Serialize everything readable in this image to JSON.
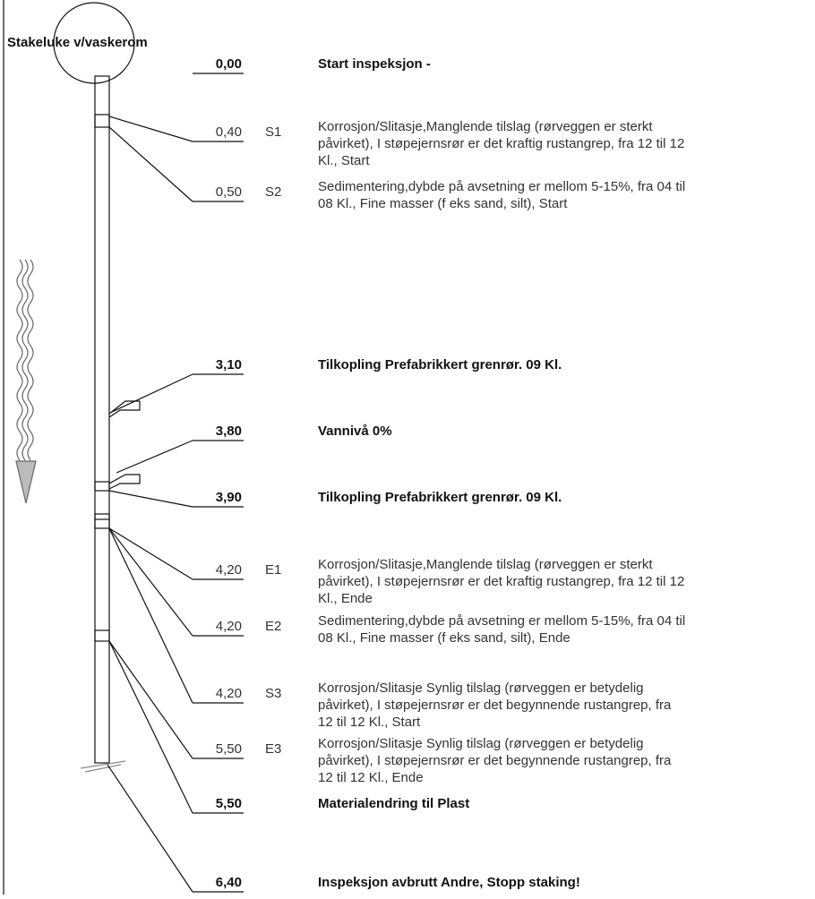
{
  "title": "Stakeluke v/vaskerom",
  "entries": [
    {
      "distance": "0,00",
      "lines": [
        "Start inspeksjon -"
      ]
    },
    {
      "distance": "0,40",
      "code": "S1",
      "lines": [
        "Korrosjon/Slitasje,Manglende tilslag (rørveggen er sterkt",
        "påvirket), I støpejernsrør er det kraftig rustangrep, fra 12 til 12",
        "Kl., Start"
      ]
    },
    {
      "distance": "0,50",
      "code": "S2",
      "lines": [
        "Sedimentering,dybde på avsetning er mellom 5-15%, fra 04 til",
        "08 Kl., Fine masser (f eks sand, silt), Start"
      ]
    },
    {
      "distance": "3,10",
      "lines": [
        "Tilkopling Prefabrikkert grenrør.  09 Kl."
      ]
    },
    {
      "distance": "3,80",
      "lines": [
        "Vannivå 0%"
      ]
    },
    {
      "distance": "3,90",
      "lines": [
        "Tilkopling Prefabrikkert grenrør.  09 Kl."
      ]
    },
    {
      "distance": "4,20",
      "code": "E1",
      "lines": [
        "Korrosjon/Slitasje,Manglende tilslag (rørveggen er sterkt",
        "påvirket), I støpejernsrør er det kraftig rustangrep, fra 12 til 12",
        "Kl., Ende"
      ]
    },
    {
      "distance": "4,20",
      "code": "E2",
      "lines": [
        "Sedimentering,dybde på avsetning er mellom 5-15%, fra 04 til",
        "08 Kl., Fine masser (f eks sand, silt), Ende"
      ]
    },
    {
      "distance": "4,20",
      "code": "S3",
      "lines": [
        "Korrosjon/Slitasje Synlig tilslag (rørveggen er betydelig",
        "påvirket), I støpejernsrør er det begynnende rustangrep, fra",
        "12 til 12 Kl., Start"
      ]
    },
    {
      "distance": "5,50",
      "code": "E3",
      "lines": [
        "Korrosjon/Slitasje Synlig tilslag (rørveggen er betydelig",
        "påvirket), I støpejernsrør er det begynnende rustangrep, fra",
        "12 til 12 Kl., Ende"
      ]
    },
    {
      "distance": "5,50",
      "lines": [
        "Materialendring til Plast"
      ]
    },
    {
      "distance": "6,40",
      "lines": [
        "Inspeksjon avbrutt Andre, Stopp staking!"
      ]
    }
  ]
}
